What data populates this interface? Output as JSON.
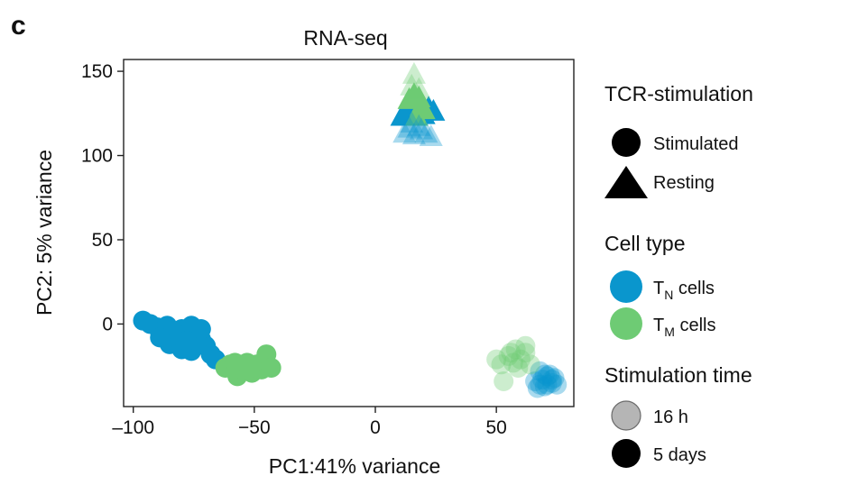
{
  "panel_label": "c",
  "chart_data": {
    "type": "scatter",
    "title": "RNA-seq",
    "xlabel": "PC1:41% variance",
    "ylabel": "PC2: 5% variance",
    "xlim": [
      -104,
      82
    ],
    "ylim": [
      -49,
      157
    ],
    "x_ticks": [
      -100,
      -50,
      0,
      50
    ],
    "x_tick_labels": [
      "–100",
      "−50",
      "0",
      "50"
    ],
    "y_ticks": [
      0,
      50,
      100,
      150
    ],
    "y_tick_labels": [
      "0",
      "50",
      "100",
      "150"
    ],
    "grid": false,
    "colors": {
      "TN": "#0a96cd",
      "TM": "#6ecb74"
    },
    "legend": {
      "placement": "right",
      "shape_title": "TCR-stimulation",
      "shape_items": [
        {
          "label": "Stimulated",
          "marker": "circle"
        },
        {
          "label": "Resting",
          "marker": "triangle"
        }
      ],
      "color_title": "Cell type",
      "color_items": [
        {
          "main": "T",
          "sub": "N",
          "rest": " cells",
          "color": "#0a96cd"
        },
        {
          "main": "T",
          "sub": "M",
          "rest": " cells",
          "color": "#6ecb74"
        }
      ],
      "alpha_title": "Stimulation time",
      "alpha_items": [
        {
          "label": "16 h",
          "alpha": 0.35
        },
        {
          "label": "5 days",
          "alpha": 1.0
        }
      ]
    },
    "series": [
      {
        "cell_type": "TN",
        "stimulation": "Stimulated",
        "time": "5 days",
        "marker": "circle",
        "points": [
          [
            -96,
            2
          ],
          [
            -93,
            0
          ],
          [
            -90,
            -2
          ],
          [
            -88,
            -4
          ],
          [
            -86,
            -1
          ],
          [
            -84,
            -6
          ],
          [
            -82,
            -9
          ],
          [
            -80,
            -3
          ],
          [
            -79,
            -11
          ],
          [
            -77,
            -7
          ],
          [
            -76,
            -1
          ],
          [
            -74,
            -12
          ],
          [
            -72,
            -9
          ],
          [
            -70,
            -13
          ],
          [
            -68,
            -18
          ],
          [
            -66,
            -21
          ],
          [
            -85,
            -12
          ],
          [
            -80,
            -15
          ],
          [
            -76,
            -16
          ],
          [
            -72,
            -3
          ],
          [
            -89,
            -8
          ],
          [
            -81,
            -7
          ],
          [
            -78,
            -10
          ]
        ]
      },
      {
        "cell_type": "TM",
        "stimulation": "Stimulated",
        "time": "5 days",
        "marker": "circle",
        "points": [
          [
            -62,
            -26
          ],
          [
            -60,
            -24
          ],
          [
            -58,
            -23
          ],
          [
            -57,
            -31
          ],
          [
            -55,
            -27
          ],
          [
            -53,
            -23
          ],
          [
            -51,
            -29
          ],
          [
            -49,
            -24
          ],
          [
            -47,
            -27
          ],
          [
            -45,
            -18
          ],
          [
            -43,
            -26
          ],
          [
            -56,
            -25
          ],
          [
            -52,
            -26
          ]
        ]
      },
      {
        "cell_type": "TN",
        "stimulation": "Stimulated",
        "time": "16 h",
        "marker": "circle",
        "points": [
          [
            66,
            -34
          ],
          [
            68,
            -28
          ],
          [
            70,
            -37
          ],
          [
            71,
            -31
          ],
          [
            73,
            -35
          ],
          [
            74,
            -32
          ],
          [
            67,
            -38
          ],
          [
            72,
            -30
          ],
          [
            69,
            -33
          ],
          [
            75,
            -36
          ],
          [
            71,
            -36
          ],
          [
            73,
            -33
          ],
          [
            70,
            -30
          ],
          [
            68,
            -36
          ]
        ]
      },
      {
        "cell_type": "TM",
        "stimulation": "Stimulated",
        "time": "16 h",
        "marker": "circle",
        "points": [
          [
            50,
            -21
          ],
          [
            52,
            -24
          ],
          [
            53,
            -34
          ],
          [
            55,
            -19
          ],
          [
            57,
            -23
          ],
          [
            58,
            -15
          ],
          [
            60,
            -21
          ],
          [
            62,
            -17
          ],
          [
            64,
            -24
          ],
          [
            62,
            -13
          ],
          [
            59,
            -26
          ],
          [
            56,
            -17
          ]
        ]
      },
      {
        "cell_type": "TN",
        "stimulation": "Resting",
        "time": "5 days",
        "marker": "triangle",
        "points": [
          [
            11,
            123
          ],
          [
            13,
            127
          ],
          [
            16,
            123
          ],
          [
            22,
            128
          ],
          [
            24,
            126
          ],
          [
            20,
            124
          ]
        ]
      },
      {
        "cell_type": "TM",
        "stimulation": "Resting",
        "time": "5 days",
        "marker": "triangle",
        "points": [
          [
            14,
            133
          ],
          [
            16,
            136
          ],
          [
            18,
            134
          ],
          [
            20,
            127
          ],
          [
            17,
            123
          ],
          [
            19,
            129
          ]
        ]
      },
      {
        "cell_type": "TN",
        "stimulation": "Resting",
        "time": "16 h",
        "marker": "triangle",
        "points": [
          [
            12,
            113
          ],
          [
            14,
            116
          ],
          [
            16,
            112
          ],
          [
            19,
            115
          ],
          [
            21,
            113
          ],
          [
            23,
            111
          ],
          [
            15,
            119
          ],
          [
            18,
            117
          ]
        ]
      },
      {
        "cell_type": "TM",
        "stimulation": "Resting",
        "time": "16 h",
        "marker": "triangle",
        "points": [
          [
            16,
            148
          ],
          [
            15,
            141
          ],
          [
            18,
            139
          ]
        ]
      }
    ]
  }
}
